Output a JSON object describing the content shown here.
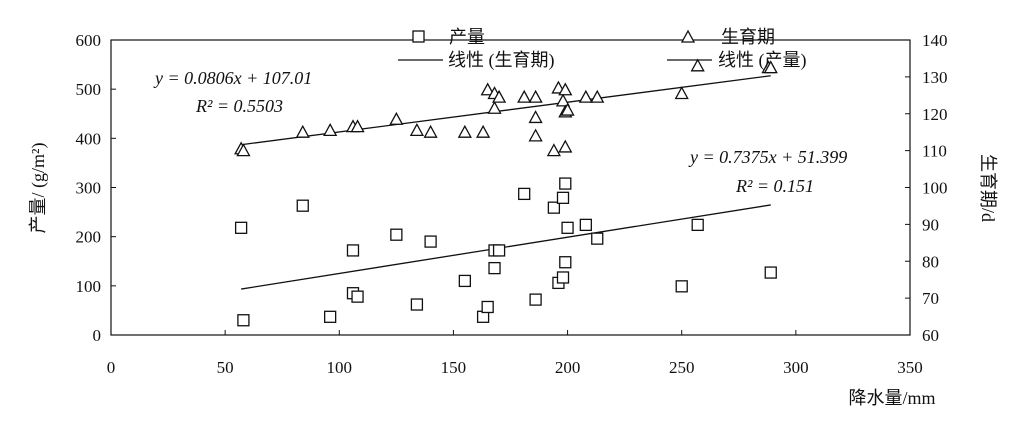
{
  "chart_data": {
    "type": "scatter",
    "xlabel": "降水量/mm",
    "ylabel_left": "产量/ (g/m²)",
    "ylabel_right": "生育期/d",
    "xlim": [
      0,
      350
    ],
    "ylim_left": [
      0,
      600
    ],
    "ylim_right": [
      60,
      140
    ],
    "xticks": [
      0,
      50,
      100,
      150,
      200,
      250,
      300,
      350
    ],
    "yticks_left": [
      0,
      100,
      200,
      300,
      400,
      500,
      600
    ],
    "yticks_right": [
      60,
      70,
      80,
      90,
      100,
      110,
      120,
      130,
      140
    ],
    "grid": false,
    "legend": {
      "placement": "top",
      "items": [
        {
          "label": "产量",
          "marker": "square"
        },
        {
          "label": "生育期",
          "marker": "triangle"
        },
        {
          "label": "线性 (生育期)",
          "marker": "line"
        },
        {
          "label": "线性 (产量)",
          "marker": "line"
        }
      ]
    },
    "series": [
      {
        "name": "产量",
        "axis": "left",
        "marker": "square",
        "points": [
          [
            57,
            218
          ],
          [
            58,
            30
          ],
          [
            84,
            263
          ],
          [
            96,
            37
          ],
          [
            106,
            85
          ],
          [
            106,
            172
          ],
          [
            108,
            78
          ],
          [
            125,
            204
          ],
          [
            134,
            62
          ],
          [
            140,
            190
          ],
          [
            155,
            110
          ],
          [
            163,
            37
          ],
          [
            165,
            57
          ],
          [
            168,
            172
          ],
          [
            168,
            136
          ],
          [
            170,
            172
          ],
          [
            181,
            287
          ],
          [
            186,
            72
          ],
          [
            194,
            259
          ],
          [
            196,
            106
          ],
          [
            198,
            117
          ],
          [
            198,
            279
          ],
          [
            199,
            148
          ],
          [
            199,
            308
          ],
          [
            200,
            218
          ],
          [
            208,
            224
          ],
          [
            213,
            196
          ],
          [
            250,
            99
          ],
          [
            257,
            224
          ],
          [
            289,
            127
          ]
        ]
      },
      {
        "name": "生育期",
        "axis": "right",
        "marker": "triangle",
        "points": [
          [
            57,
            110.5
          ],
          [
            58,
            110
          ],
          [
            84,
            115
          ],
          [
            96,
            115.5
          ],
          [
            106,
            116.5
          ],
          [
            108,
            116.5
          ],
          [
            125,
            118.5
          ],
          [
            134,
            115.5
          ],
          [
            140,
            115
          ],
          [
            155,
            115
          ],
          [
            163,
            115
          ],
          [
            165,
            126.5
          ],
          [
            168,
            125.5
          ],
          [
            168,
            121.5
          ],
          [
            170,
            124.5
          ],
          [
            181,
            124.5
          ],
          [
            186,
            124.5
          ],
          [
            186,
            119
          ],
          [
            186,
            114
          ],
          [
            194,
            110
          ],
          [
            196,
            127
          ],
          [
            198,
            123.5
          ],
          [
            199,
            111
          ],
          [
            199,
            126.5
          ],
          [
            199,
            120.5
          ],
          [
            200,
            121
          ],
          [
            208,
            124.5
          ],
          [
            213,
            124.5
          ],
          [
            250,
            125.5
          ],
          [
            257,
            133
          ],
          [
            288,
            132.5
          ],
          [
            289,
            132.5
          ]
        ]
      }
    ],
    "trendlines": [
      {
        "name": "线性 (生育期)",
        "axis": "right",
        "slope": 0.0806,
        "intercept": 107.01,
        "x_range": [
          57,
          289
        ]
      },
      {
        "name": "线性 (产量)",
        "axis": "left",
        "slope": 0.7375,
        "intercept": 51.399,
        "x_range": [
          57,
          289
        ]
      }
    ],
    "annotations": [
      {
        "id": "eq_growth",
        "equation": "y = 0.0806x + 107.01",
        "r2": "R² = 0.5503"
      },
      {
        "id": "eq_yield",
        "equation": "y = 0.7375x + 51.399",
        "r2": "R² = 0.151"
      }
    ]
  }
}
